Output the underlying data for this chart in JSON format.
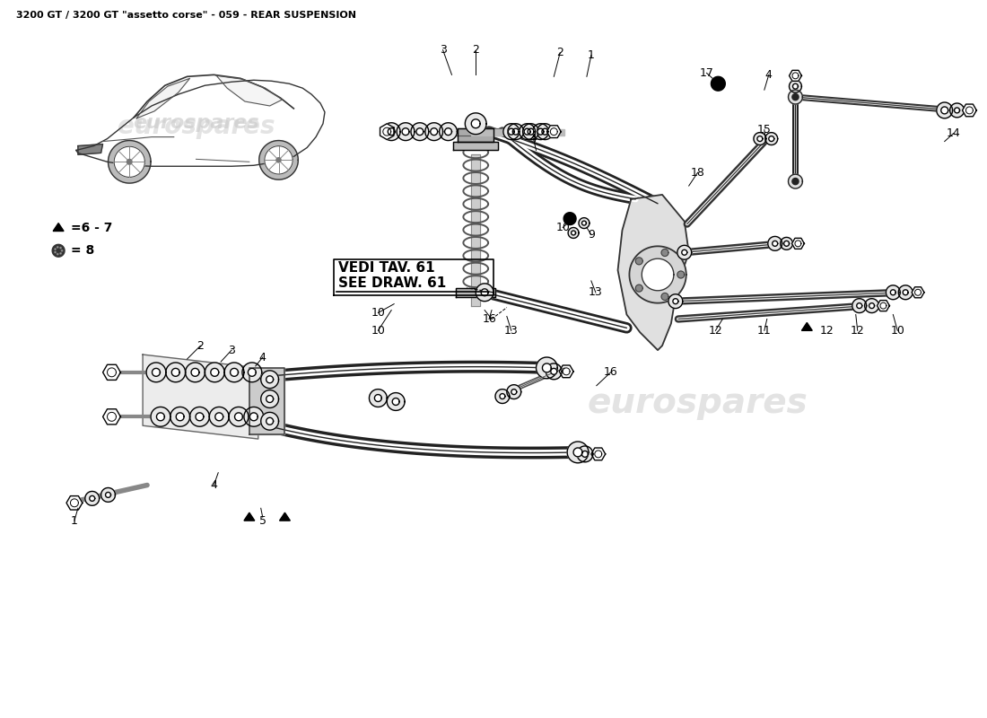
{
  "title": "3200 GT / 3200 GT \"assetto corse\" - 059 - REAR SUSPENSION",
  "title_fontsize": 8,
  "bg_color": "#ffffff",
  "watermark": "eurospares",
  "legend_triangle": "=6 - 7",
  "legend_circle": "= 8",
  "vedi_line1": "VEDI TAV. 61",
  "vedi_line2": "SEE DRAW. 61"
}
